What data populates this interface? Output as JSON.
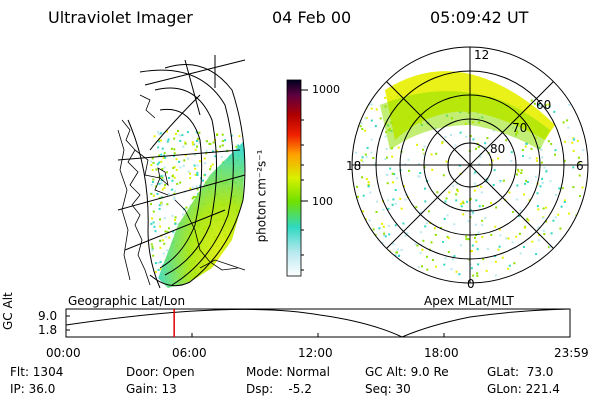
{
  "header": {
    "title": "Ultraviolet Imager",
    "date": "04 Feb 00",
    "time": "05:09:42 UT"
  },
  "colorbar": {
    "label": "photon cm⁻²s⁻¹",
    "tick_high": "1000",
    "tick_mid": "100"
  },
  "panels": {
    "left_label": "Geographic Lat/Lon",
    "right_label": "Apex MLat/MLT"
  },
  "polar": {
    "mlt_top": "12",
    "mlt_left": "18",
    "mlt_right": "6",
    "mlt_bottom": "0",
    "lat_60": "60",
    "lat_70": "70",
    "lat_80": "80"
  },
  "altitude_plot": {
    "ylabel": "GC Alt",
    "ytick_high": "9.0",
    "ytick_low": "1.8",
    "xticks": [
      "00:00",
      "06:00",
      "12:00",
      "18:00",
      "23:59"
    ],
    "cursor_time_fraction": 0.2146
  },
  "status": {
    "flt": "Flt: 1304",
    "ip": "IP: 36.0",
    "door": "Door: Open",
    "gain": "Gain: 13",
    "mode": "Mode: Normal",
    "dsp": "Dsp:    -5.2",
    "gcalt": "GC Alt: 9.0 Re",
    "seq": "Seq: 30",
    "glat": "GLat:  73.0",
    "glon": "GLon: 221.4"
  },
  "colors": {
    "cursor": "#e00000",
    "aurora_yellow": "#e8f000",
    "aurora_green": "#8ee000",
    "aurora_cyan": "#30d8c0"
  }
}
